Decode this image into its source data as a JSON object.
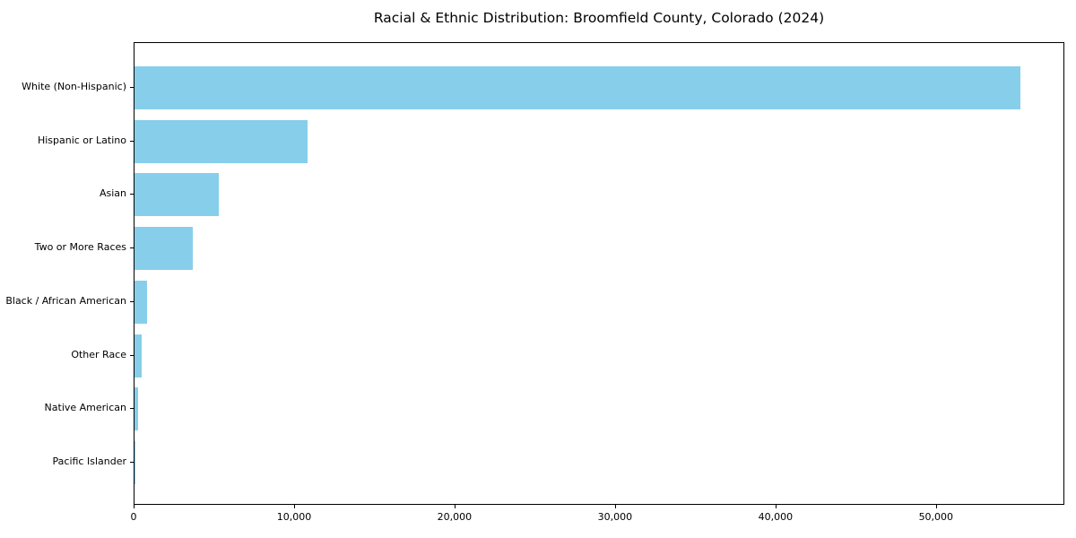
{
  "title": "Racial & Ethnic Distribution: Broomfield County, Colorado (2024)",
  "colors": {
    "bar": "#87CEEB",
    "axis": "#000000",
    "background": "#ffffff",
    "text": "#000000"
  },
  "chart_data": {
    "type": "bar",
    "orientation": "horizontal",
    "title": "Racial & Ethnic Distribution: Broomfield County, Colorado (2024)",
    "xlabel": "",
    "ylabel": "",
    "categories": [
      "White (Non-Hispanic)",
      "Hispanic or Latino",
      "Asian",
      "Two or More Races",
      "Black / African American",
      "Other Race",
      "Native American",
      "Pacific Islander"
    ],
    "values": [
      55200,
      10800,
      5250,
      3650,
      800,
      450,
      220,
      60
    ],
    "xlim": [
      0,
      58000
    ],
    "x_ticks": [
      0,
      10000,
      20000,
      30000,
      40000,
      50000
    ],
    "x_tick_labels": [
      "0",
      "10,000",
      "20,000",
      "30,000",
      "40,000",
      "50,000"
    ],
    "bar_color": "#87CEEB",
    "grid": false,
    "legend": null
  }
}
